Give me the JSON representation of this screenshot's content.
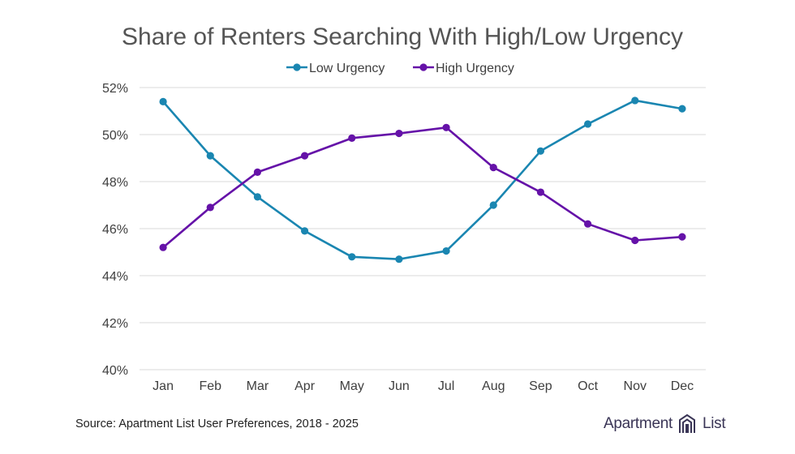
{
  "chart_data": {
    "type": "line",
    "title": "Share of Renters Searching With High/Low Urgency",
    "categories": [
      "Jan",
      "Feb",
      "Mar",
      "Apr",
      "May",
      "Jun",
      "Jul",
      "Aug",
      "Sep",
      "Oct",
      "Nov",
      "Dec"
    ],
    "series": [
      {
        "name": "Low Urgency",
        "color": "#1a86b1",
        "values": [
          51.4,
          49.1,
          47.35,
          45.9,
          44.8,
          44.7,
          45.05,
          47.0,
          49.3,
          50.45,
          51.45,
          51.1
        ]
      },
      {
        "name": "High Urgency",
        "color": "#6512a8",
        "values": [
          45.2,
          46.9,
          48.4,
          49.1,
          49.85,
          50.05,
          50.3,
          48.6,
          47.55,
          46.2,
          45.5,
          45.65
        ]
      }
    ],
    "ylim": [
      40,
      52
    ],
    "yticks": [
      40,
      42,
      44,
      46,
      48,
      50,
      52
    ],
    "ytick_format": "{v}%",
    "xlabel": "",
    "ylabel": "",
    "grid": true,
    "legend_position": "top-center"
  },
  "footer": {
    "source": "Source: Apartment List User Preferences, 2018 - 2025",
    "brand_left": "Apartment",
    "brand_right": "List",
    "logo_icon": "apartment-list-logo-icon",
    "logo_color": "#3a3556"
  }
}
